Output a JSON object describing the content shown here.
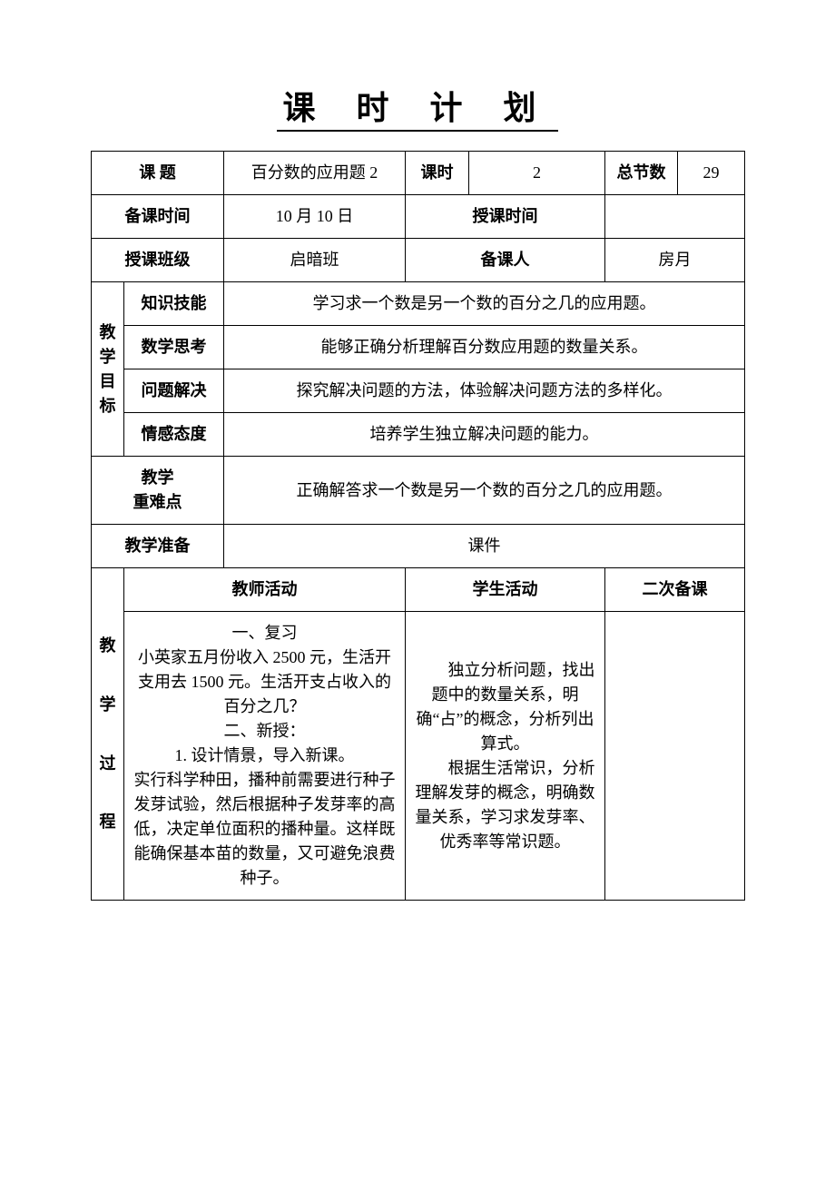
{
  "title": "课 时 计 划",
  "header": {
    "topic_label": "课    题",
    "topic_value": "百分数的应用题 2",
    "period_label": "课时",
    "period_value": "2",
    "total_label": "总节数",
    "total_value": "29",
    "prep_time_label": "备课时间",
    "prep_time_value": "10 月 10 日",
    "teach_time_label": "授课时间",
    "teach_time_value": "",
    "class_label": "授课班级",
    "class_value": "启暗班",
    "preparer_label": "备课人",
    "preparer_value": "房月"
  },
  "objectives": {
    "side_label": "教学目标",
    "rows": [
      {
        "label": "知识技能",
        "text": "学习求一个数是另一个数的百分之几的应用题。"
      },
      {
        "label": "数学思考",
        "text": "能够正确分析理解百分数应用题的数量关系。"
      },
      {
        "label": "问题解决",
        "text": "探究解决问题的方法，体验解决问题方法的多样化。"
      },
      {
        "label": "情感态度",
        "text": "培养学生独立解决问题的能力。"
      }
    ]
  },
  "keypoints": {
    "label_line1": "教学",
    "label_line2": "重难点",
    "text": "正确解答求一个数是另一个数的百分之几的应用题。"
  },
  "prep": {
    "label": "教学准备",
    "text": "课件"
  },
  "process": {
    "side_label": "教学过程",
    "headers": {
      "teacher": "教师活动",
      "student": "学生活动",
      "revise": "二次备课"
    },
    "teacher_lines": [
      "一、复习",
      "小英家五月份收入 2500 元，生活开支用去 1500 元。生活开支占收入的百分之几？",
      "二、新授：",
      "1. 设计情景，导入新课。",
      "实行科学种田，播种前需要进行种子发芽试验，然后根据种子发芽率的高低，决定单位面积的播种量。这样既能确保基本苗的数量，又可避免浪费种子。"
    ],
    "student_lines": [
      "　　独立分析问题，找出题中的数量关系，明确“占”的概念，分析列出算式。",
      "",
      "",
      "　　根据生活常识，分析理解发芽的概念，明确数量关系，学习求发芽率、优秀率等常识题。"
    ],
    "revise_text": ""
  },
  "colors": {
    "text": "#000000",
    "background": "#ffffff",
    "border": "#000000"
  }
}
